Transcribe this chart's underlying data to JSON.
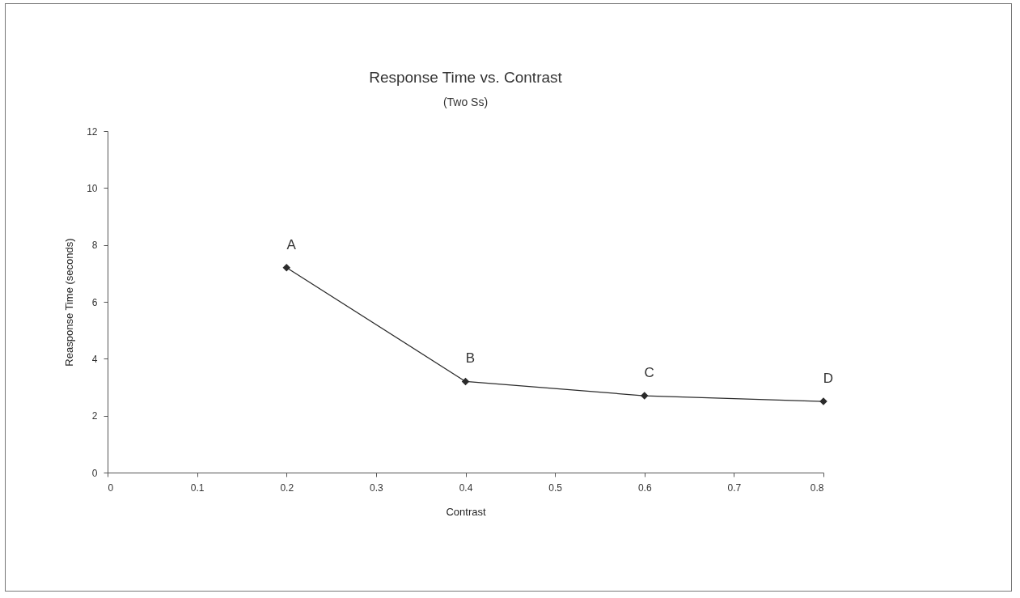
{
  "chart_data": {
    "type": "line",
    "title": "Response Time vs. Contrast",
    "subtitle": "(Two Ss)",
    "xlabel": "Contrast",
    "ylabel": "Reasponse Time (seconds)",
    "x": [
      0.2,
      0.4,
      0.6,
      0.8
    ],
    "series": [
      {
        "color": "#2b2b2b",
        "values": [
          7.2,
          3.2,
          2.7,
          2.5
        ]
      }
    ],
    "annotations": [
      {
        "text": "A",
        "x": 0.2,
        "y": 7.2
      },
      {
        "text": "B",
        "x": 0.4,
        "y": 3.2
      },
      {
        "text": "C",
        "x": 0.6,
        "y": 2.7
      },
      {
        "text": "D",
        "x": 0.8,
        "y": 2.5
      }
    ],
    "xlim": [
      0,
      0.8
    ],
    "xticks": [
      0,
      0.1,
      0.2,
      0.3,
      0.4,
      0.5,
      0.6,
      0.7,
      0.8
    ],
    "ylim": [
      0,
      12
    ],
    "yticks": [
      0,
      2,
      4,
      6,
      8,
      10,
      12
    ],
    "grid": false,
    "marker": "diamond",
    "line_style": "solid"
  }
}
